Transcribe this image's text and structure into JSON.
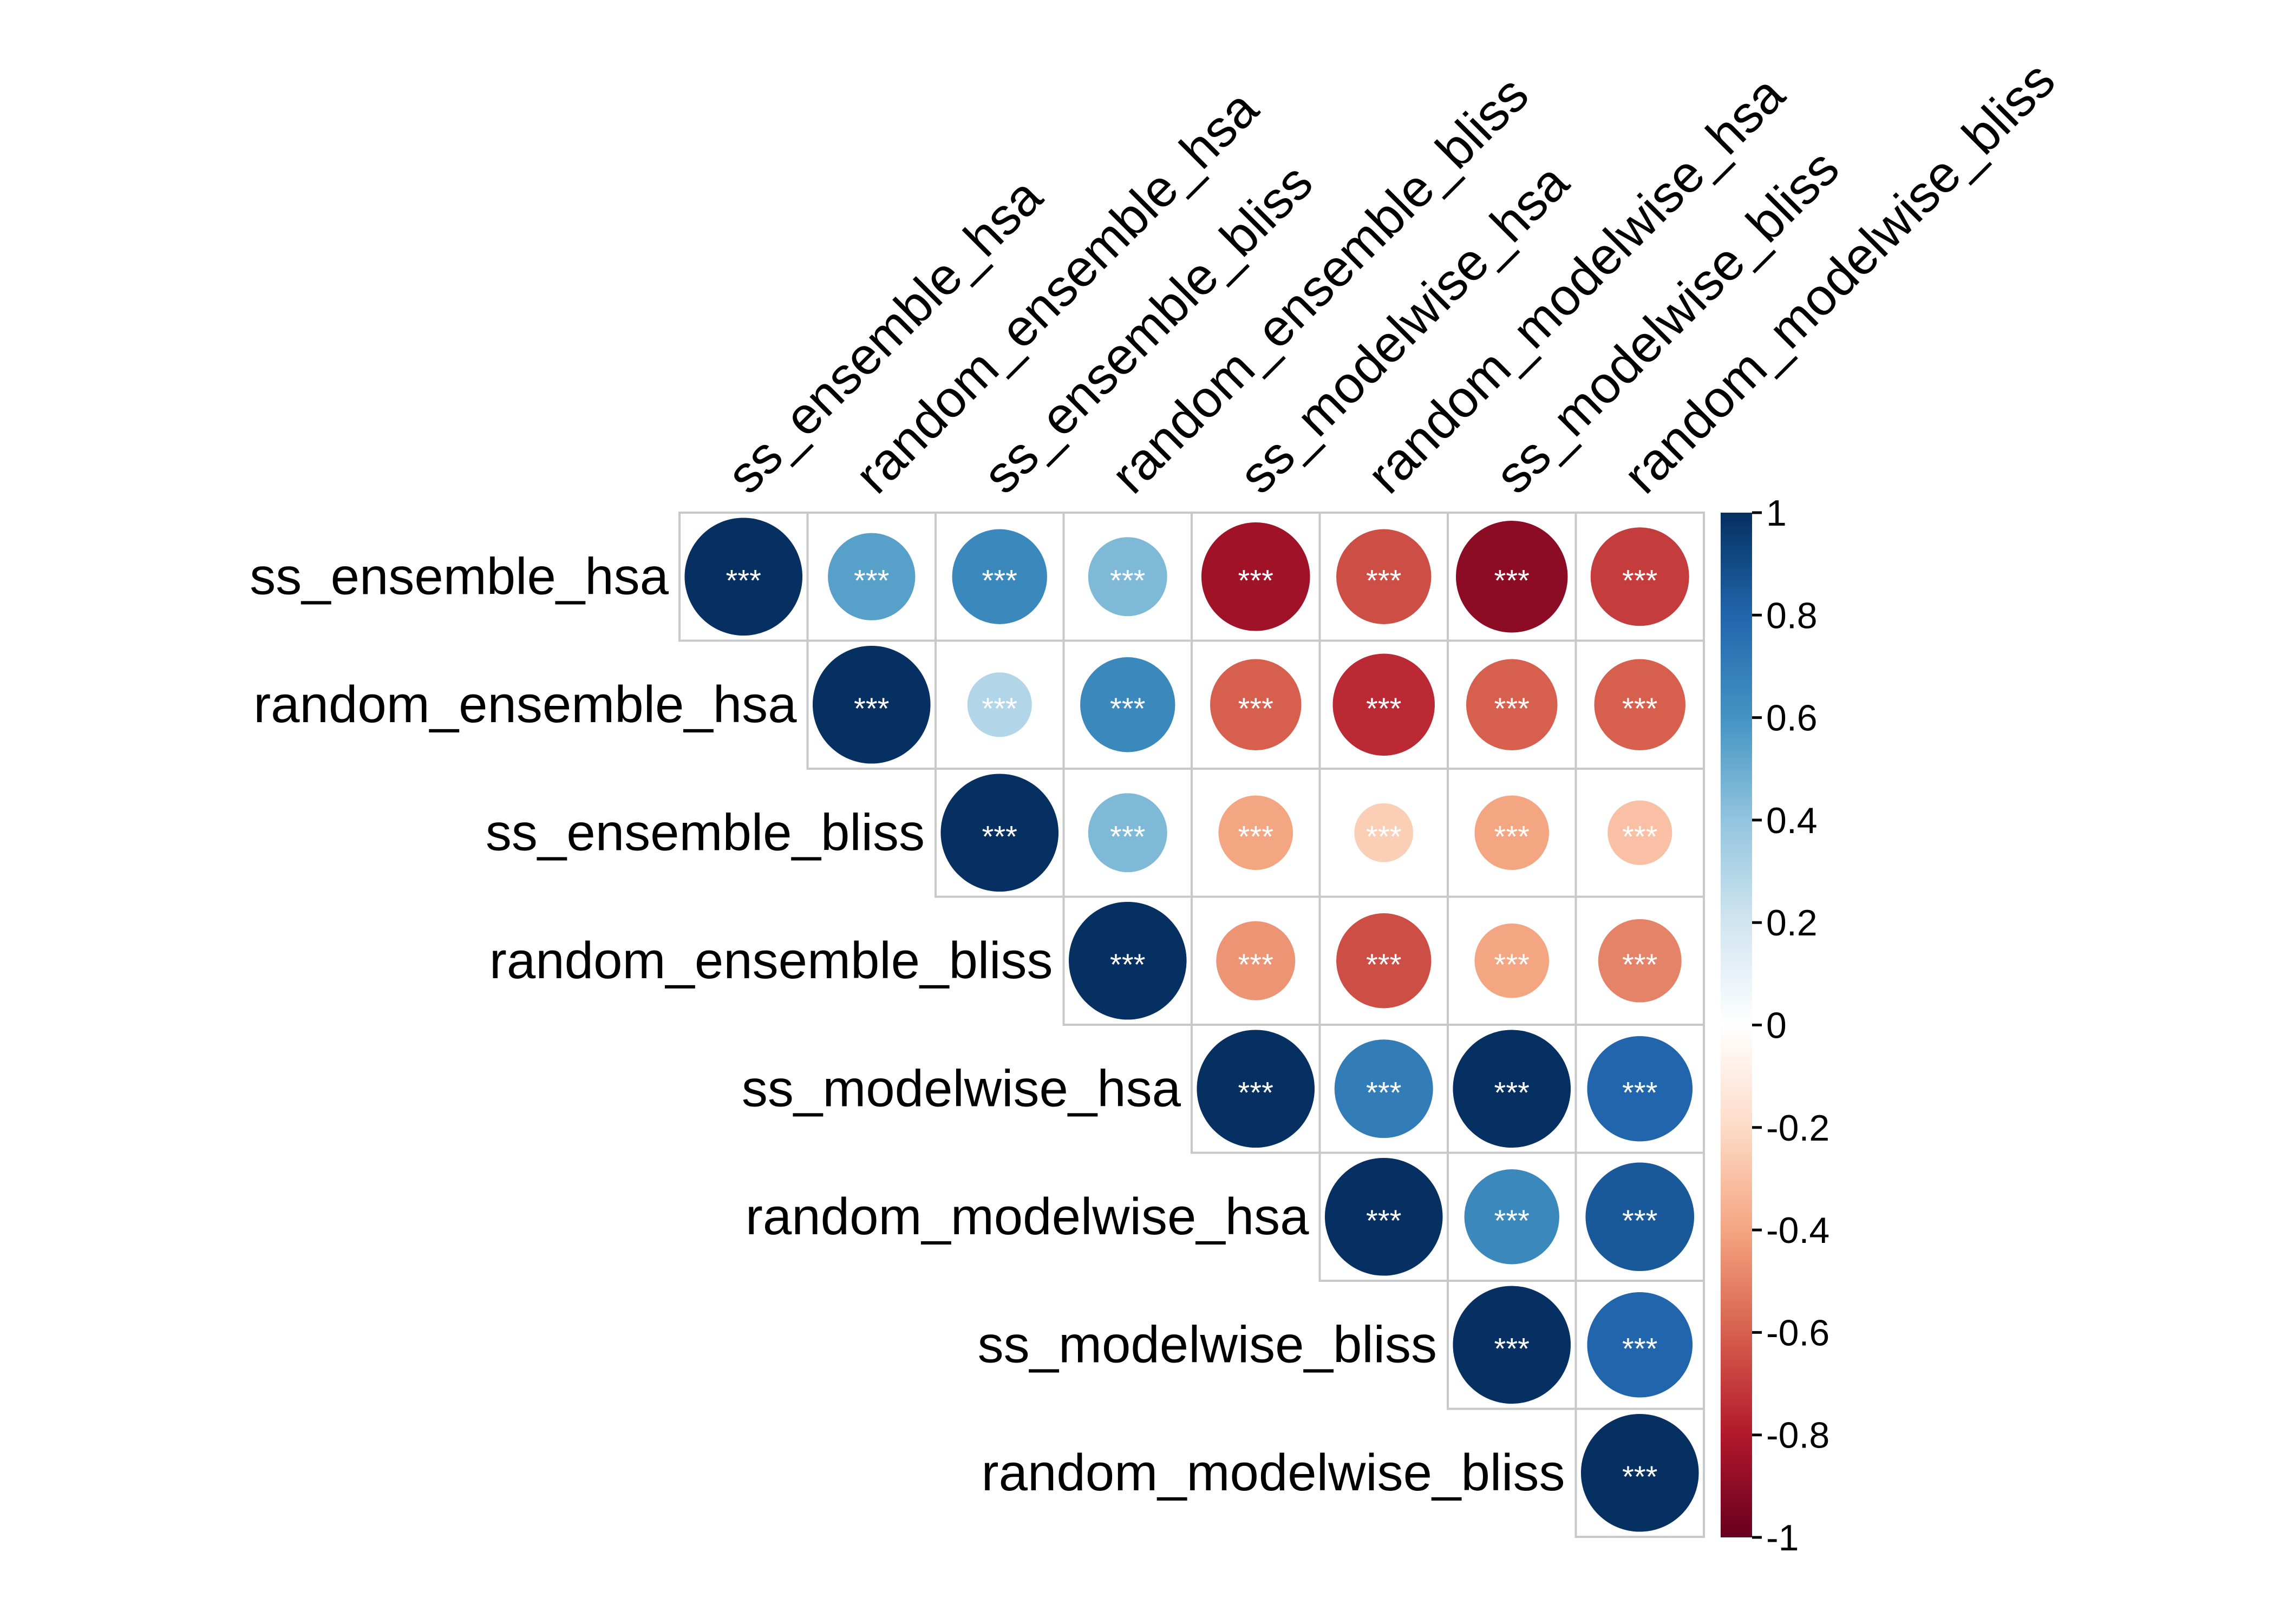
{
  "chart_data": {
    "type": "heatmap",
    "subtype": "correlation-circles",
    "layout": "upper-triangle",
    "variables": [
      "ss_ensemble_hsa",
      "random_ensemble_hsa",
      "ss_ensemble_bliss",
      "random_ensemble_bliss",
      "ss_modelwise_hsa",
      "random_modelwise_hsa",
      "ss_modelwise_bliss",
      "random_modelwise_bliss"
    ],
    "matrix": [
      [
        1.0,
        0.55,
        0.65,
        0.45,
        -0.85,
        -0.65,
        -0.9,
        -0.7
      ],
      [
        null,
        1.0,
        0.3,
        0.65,
        -0.6,
        -0.75,
        -0.6,
        -0.6
      ],
      [
        null,
        null,
        1.0,
        0.45,
        -0.4,
        -0.25,
        -0.4,
        -0.3
      ],
      [
        null,
        null,
        null,
        1.0,
        -0.45,
        -0.65,
        -0.4,
        -0.5
      ],
      [
        null,
        null,
        null,
        null,
        1.0,
        0.7,
        1.0,
        0.8
      ],
      [
        null,
        null,
        null,
        null,
        null,
        1.0,
        0.65,
        0.85
      ],
      [
        null,
        null,
        null,
        null,
        null,
        null,
        1.0,
        0.8
      ],
      [
        null,
        null,
        null,
        null,
        null,
        null,
        null,
        1.0
      ]
    ],
    "significance_label": "***",
    "colorbar": {
      "range": [
        -1,
        1
      ],
      "ticks": [
        "1",
        "0.8",
        "0.6",
        "0.4",
        "0.2",
        "0",
        "-0.2",
        "-0.4",
        "-0.6",
        "-0.8",
        "-1"
      ],
      "colors": [
        "#67001f",
        "#b2182b",
        "#d6604d",
        "#f4a582",
        "#fddbc7",
        "#ffffff",
        "#d1e5f0",
        "#92c5de",
        "#4393c3",
        "#2166ac",
        "#053061"
      ]
    },
    "grid": true
  }
}
